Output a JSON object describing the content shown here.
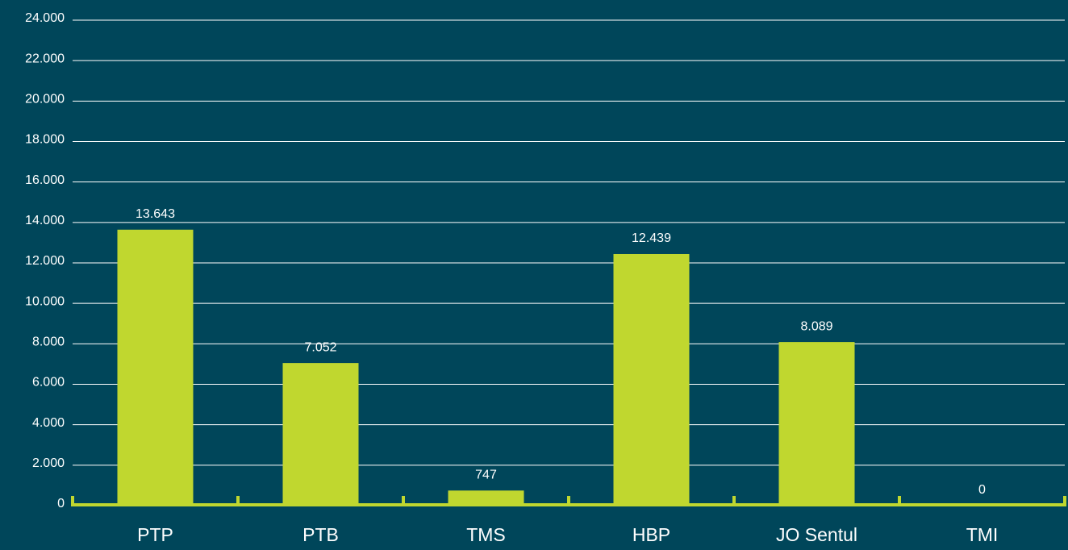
{
  "chart_data": {
    "type": "bar",
    "categories": [
      "PTP",
      "PTB",
      "TMS",
      "HBP",
      "JO Sentul",
      "TMI"
    ],
    "values": [
      13643,
      7052,
      747,
      12439,
      8089,
      0
    ],
    "value_labels": [
      "13.643",
      "7.052",
      "747",
      "12.439",
      "8.089",
      "0"
    ],
    "color": "#c0d72f",
    "ylim": [
      0,
      24000
    ],
    "yticks": [
      0,
      {
        "value": 2000,
        "label": "2.000"
      },
      {
        "value": 4000,
        "label": "4.000"
      },
      {
        "value": 6000,
        "label": "6.000"
      },
      {
        "value": 8000,
        "label": "8.000"
      },
      {
        "value": 10000,
        "label": "10.000"
      },
      {
        "value": 12000,
        "label": "12.000"
      },
      {
        "value": 14000,
        "label": "14.000"
      },
      {
        "value": 16000,
        "label": "16.000"
      },
      {
        "value": 18000,
        "label": "18.000"
      },
      {
        "value": 20000,
        "label": "20.000"
      },
      {
        "value": 22000,
        "label": "22.000"
      },
      {
        "value": 24000,
        "label": "24.000"
      }
    ],
    "grid": true
  }
}
